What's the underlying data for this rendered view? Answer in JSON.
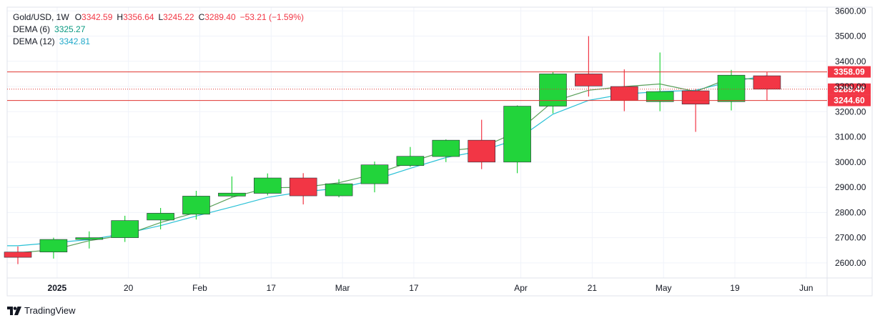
{
  "legend": {
    "symbol": "Gold/USD, 1W",
    "o_label": "O",
    "o_value": "3342.59",
    "h_label": "H",
    "h_value": "3356.64",
    "l_label": "L",
    "l_value": "3245.22",
    "c_label": "C",
    "c_value": "3289.40",
    "change": "−53.21 (−1.59%)",
    "dema6_label": "DEMA (6)",
    "dema6_value": "3325.27",
    "dema12_label": "DEMA (12)",
    "dema12_value": "3342.81"
  },
  "brand": {
    "name": "TradingView",
    "logo_icon": "tradingview-logo-icon"
  },
  "colors": {
    "up": "#22d43b",
    "down": "#f23645",
    "wick": "#6b6f7a",
    "dema6": "#5aa05a",
    "dema12": "#29c1d6",
    "hline": "#e03530",
    "last_label_bg": "#f23645"
  },
  "chart_data": {
    "type": "candlestick",
    "title": "Gold/USD, 1W",
    "y_range": [
      2540,
      3615
    ],
    "y_ticks": [
      2600,
      2700,
      2800,
      2900,
      3000,
      3100,
      3200,
      3300,
      3400,
      3500,
      3600
    ],
    "y_tick_labels": [
      "2600.00",
      "2700.00",
      "2800.00",
      "2900.00",
      "3000.00",
      "3100.00",
      "3200.00",
      "3300.00",
      "3400.00",
      "3500.00",
      "3600.00"
    ],
    "x_ticks": [
      {
        "label": "2025",
        "index": 1.1
      },
      {
        "label": "20",
        "index": 3.1
      },
      {
        "label": "Feb",
        "index": 5.1
      },
      {
        "label": "17",
        "index": 7.1
      },
      {
        "label": "Mar",
        "index": 9.1
      },
      {
        "label": "17",
        "index": 11.1
      },
      {
        "label": "Apr",
        "index": 14.1
      },
      {
        "label": "21",
        "index": 16.1
      },
      {
        "label": "May",
        "index": 18.1
      },
      {
        "label": "19",
        "index": 20.1
      },
      {
        "label": "Jun",
        "index": 22.1
      }
    ],
    "candles": [
      {
        "o": 2643,
        "h": 2665,
        "l": 2595,
        "c": 2622
      },
      {
        "o": 2643,
        "h": 2700,
        "l": 2617,
        "c": 2693
      },
      {
        "o": 2693,
        "h": 2725,
        "l": 2657,
        "c": 2700
      },
      {
        "o": 2700,
        "h": 2787,
        "l": 2683,
        "c": 2768
      },
      {
        "o": 2770,
        "h": 2818,
        "l": 2733,
        "c": 2797
      },
      {
        "o": 2793,
        "h": 2886,
        "l": 2772,
        "c": 2865
      },
      {
        "o": 2865,
        "h": 2943,
        "l": 2861,
        "c": 2877
      },
      {
        "o": 2876,
        "h": 2955,
        "l": 2868,
        "c": 2937
      },
      {
        "o": 2937,
        "h": 2956,
        "l": 2832,
        "c": 2866
      },
      {
        "o": 2866,
        "h": 2932,
        "l": 2860,
        "c": 2914
      },
      {
        "o": 2914,
        "h": 3002,
        "l": 2880,
        "c": 2989
      },
      {
        "o": 2986,
        "h": 3060,
        "l": 2981,
        "c": 3023
      },
      {
        "o": 3022,
        "h": 3090,
        "l": 3000,
        "c": 3087
      },
      {
        "o": 3087,
        "h": 3168,
        "l": 2972,
        "c": 3000
      },
      {
        "o": 3000,
        "h": 3225,
        "l": 2956,
        "c": 3222
      },
      {
        "o": 3222,
        "h": 3359,
        "l": 3193,
        "c": 3350
      },
      {
        "o": 3350,
        "h": 3500,
        "l": 3260,
        "c": 3302
      },
      {
        "o": 3300,
        "h": 3368,
        "l": 3202,
        "c": 3245
      },
      {
        "o": 3240,
        "h": 3435,
        "l": 3202,
        "c": 3280
      },
      {
        "o": 3283,
        "h": 3290,
        "l": 3120,
        "c": 3230
      },
      {
        "o": 3240,
        "h": 3366,
        "l": 3205,
        "c": 3345
      },
      {
        "o": 3342.59,
        "h": 3356.64,
        "l": 3245.22,
        "c": 3289.4
      }
    ],
    "dema6": [
      2640,
      2652,
      2688,
      2710,
      2760,
      2800,
      2860,
      2898,
      2900,
      2918,
      2952,
      3000,
      3045,
      3058,
      3120,
      3240,
      3285,
      3300,
      3310,
      3280,
      3335,
      3325.27
    ],
    "dema12": [
      2668,
      2680,
      2692,
      2716,
      2748,
      2786,
      2822,
      2860,
      2882,
      2896,
      2930,
      2975,
      3018,
      3045,
      3090,
      3190,
      3245,
      3270,
      3280,
      3285,
      3320,
      3342.81
    ],
    "hlines": [
      {
        "value": 3358.09,
        "label": "3358.09",
        "style": "solid"
      },
      {
        "value": 3289.4,
        "label": "3289.40",
        "style": "dotted"
      },
      {
        "value": 3244.6,
        "label": "3244.60",
        "style": "solid"
      }
    ]
  }
}
